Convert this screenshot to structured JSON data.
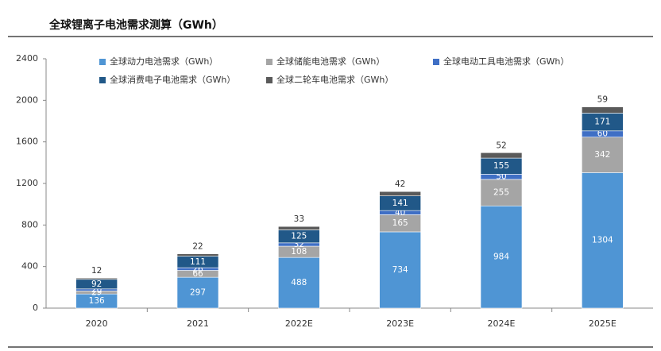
{
  "chart_data": {
    "type": "bar",
    "stacked": true,
    "title": "全球锂离子电池需求测算（GWh）",
    "categories": [
      "2020",
      "2021",
      "2022E",
      "2023E",
      "2024E",
      "2025E"
    ],
    "series": [
      {
        "name": "全球动力电池需求（GWh）",
        "color": "#4f95d4",
        "values": [
          136,
          297,
          488,
          734,
          984,
          1304
        ]
      },
      {
        "name": "全球储能电池需求（GWh）",
        "color": "#a5a5a5",
        "values": [
          29,
          66,
          108,
          165,
          255,
          342
        ]
      },
      {
        "name": "全球电动工具电池需求（GWh）",
        "color": "#3f6fc5",
        "values": [
          20,
          26,
          32,
          40,
          50,
          60
        ]
      },
      {
        "name": "全球消费电子电池需求（GWh）",
        "color": "#215888",
        "values": [
          92,
          111,
          125,
          141,
          155,
          171
        ]
      },
      {
        "name": "全球二轮车电池需求（GWh）",
        "color": "#5a5a5a",
        "values": [
          12,
          22,
          33,
          42,
          52,
          59
        ]
      }
    ],
    "ylim": [
      0,
      2400
    ],
    "yticks": [
      0,
      400,
      800,
      1200,
      1600,
      2000,
      2400
    ],
    "grid": false
  }
}
